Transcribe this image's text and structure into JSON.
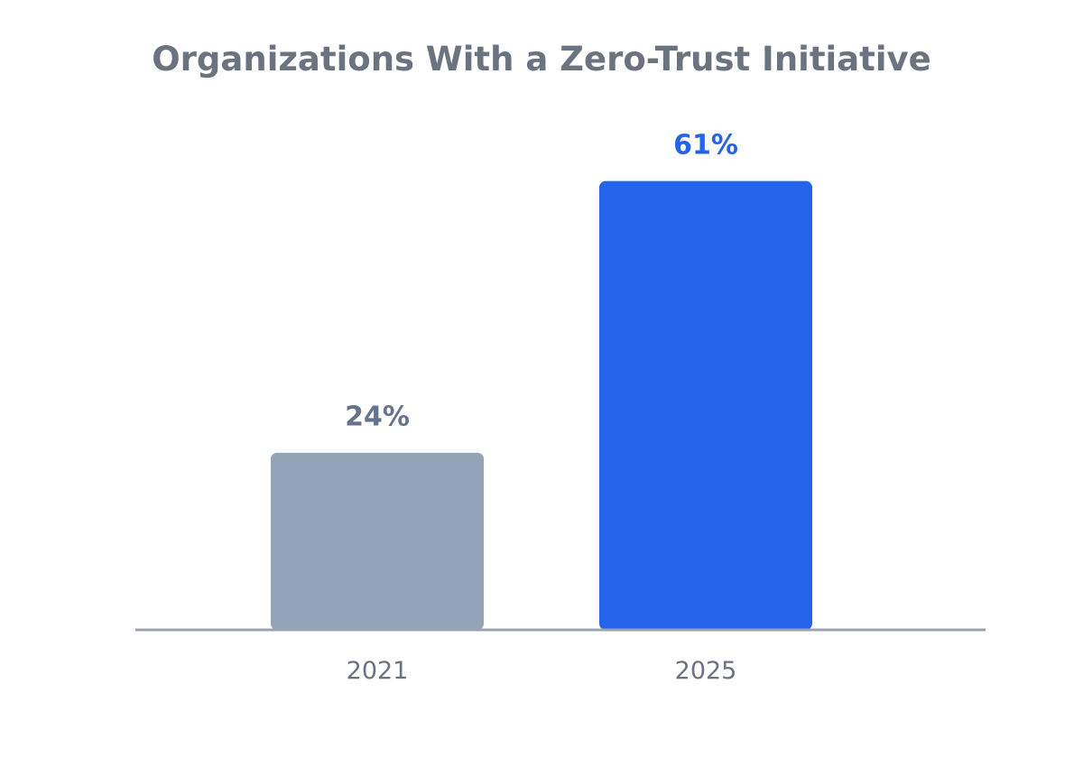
{
  "chart_data": {
    "type": "bar",
    "title": "Organizations With a Zero-Trust Initiative",
    "categories": [
      "2021",
      "2025"
    ],
    "values": [
      24,
      61
    ],
    "value_labels": [
      "24%",
      "61%"
    ],
    "unit": "%",
    "ylim": [
      0,
      66
    ],
    "grid": false,
    "legend": "none",
    "xlabel": "",
    "ylabel": ""
  },
  "colors": {
    "title": "#6b7280",
    "axis_line": "#9ca3af",
    "tick_label": "#6b7280",
    "bars": [
      "#94a3b8",
      "#2563eb"
    ],
    "value_labels": [
      "#64748b",
      "#2563eb"
    ]
  }
}
